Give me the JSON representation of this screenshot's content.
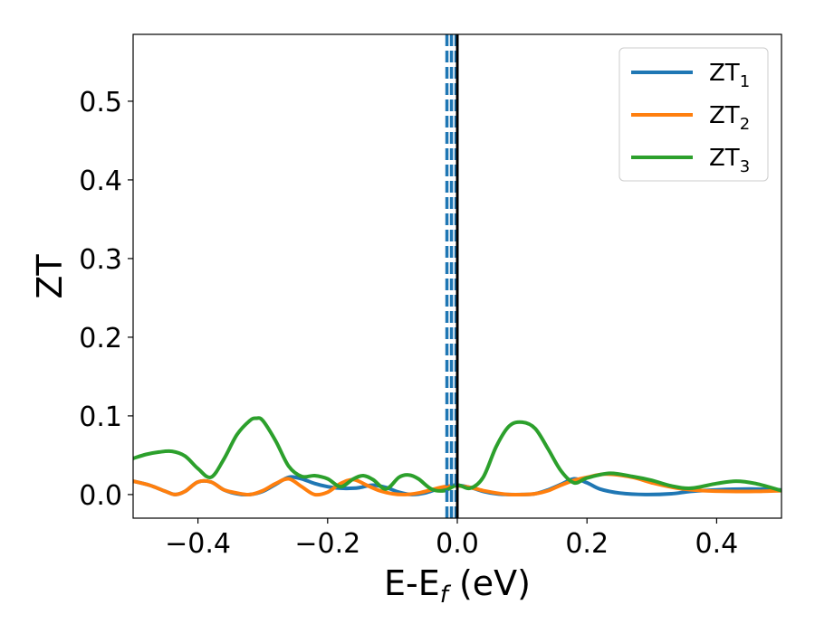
{
  "chart_data": {
    "type": "line",
    "xlabel": "E-E",
    "xlabel_sub": "f",
    "xlabel_unit": "(eV)",
    "ylabel": "ZT",
    "xlim": [
      -0.5,
      0.5
    ],
    "ylim": [
      -0.03,
      0.585
    ],
    "x_ticks": [
      -0.4,
      -0.2,
      0.0,
      0.2,
      0.4
    ],
    "x_tick_labels": [
      "−0.4",
      "−0.2",
      "0.0",
      "0.2",
      "0.4"
    ],
    "y_ticks": [
      0.0,
      0.1,
      0.2,
      0.3,
      0.4,
      0.5
    ],
    "y_tick_labels": [
      "0.0",
      "0.1",
      "0.2",
      "0.3",
      "0.4",
      "0.5"
    ],
    "legend_position": "top-right",
    "grid": false,
    "series": [
      {
        "name": "ZT",
        "name_sub": "1",
        "color": "#1f77b4",
        "x": [
          -0.5,
          -0.475,
          -0.45,
          -0.435,
          -0.42,
          -0.4,
          -0.38,
          -0.36,
          -0.34,
          -0.32,
          -0.3,
          -0.28,
          -0.26,
          -0.24,
          -0.22,
          -0.2,
          -0.18,
          -0.16,
          -0.15,
          -0.13,
          -0.11,
          -0.09,
          -0.07,
          -0.05,
          -0.03,
          -0.01,
          0.0,
          0.02,
          0.04,
          0.06,
          0.08,
          0.1,
          0.12,
          0.14,
          0.16,
          0.18,
          0.2,
          0.22,
          0.25,
          0.29,
          0.33,
          0.36,
          0.4,
          0.45,
          0.5
        ],
        "y": [
          0.017,
          0.012,
          0.004,
          0.0,
          0.004,
          0.016,
          0.016,
          0.006,
          0.001,
          0.0,
          0.004,
          0.013,
          0.022,
          0.02,
          0.014,
          0.01,
          0.008,
          0.008,
          0.009,
          0.012,
          0.009,
          0.003,
          0.0,
          0.002,
          0.007,
          0.011,
          0.012,
          0.009,
          0.004,
          0.001,
          0.0,
          0.0,
          0.001,
          0.006,
          0.013,
          0.02,
          0.015,
          0.007,
          0.002,
          0.0,
          0.001,
          0.004,
          0.006,
          0.007,
          0.006
        ]
      },
      {
        "name": "ZT",
        "name_sub": "2",
        "color": "#ff7f0e",
        "x": [
          -0.5,
          -0.475,
          -0.45,
          -0.435,
          -0.42,
          -0.4,
          -0.38,
          -0.36,
          -0.34,
          -0.32,
          -0.3,
          -0.28,
          -0.26,
          -0.24,
          -0.22,
          -0.2,
          -0.18,
          -0.16,
          -0.14,
          -0.12,
          -0.1,
          -0.08,
          -0.06,
          -0.04,
          -0.02,
          0.0,
          0.02,
          0.04,
          0.06,
          0.08,
          0.1,
          0.12,
          0.14,
          0.16,
          0.18,
          0.2,
          0.23,
          0.27,
          0.3,
          0.34,
          0.38,
          0.42,
          0.46,
          0.5
        ],
        "y": [
          0.017,
          0.012,
          0.004,
          0.0,
          0.004,
          0.016,
          0.016,
          0.006,
          0.002,
          0.0,
          0.005,
          0.014,
          0.02,
          0.01,
          0.0,
          0.003,
          0.014,
          0.019,
          0.012,
          0.005,
          0.001,
          0.0,
          0.002,
          0.006,
          0.01,
          0.011,
          0.009,
          0.005,
          0.002,
          0.0,
          0.0,
          0.001,
          0.005,
          0.012,
          0.018,
          0.022,
          0.026,
          0.022,
          0.015,
          0.008,
          0.005,
          0.004,
          0.004,
          0.005
        ]
      },
      {
        "name": "ZT",
        "name_sub": "3",
        "color": "#2ca02c",
        "x": [
          -0.5,
          -0.48,
          -0.46,
          -0.44,
          -0.42,
          -0.4,
          -0.38,
          -0.36,
          -0.34,
          -0.32,
          -0.31,
          -0.3,
          -0.28,
          -0.26,
          -0.24,
          -0.22,
          -0.2,
          -0.18,
          -0.16,
          -0.145,
          -0.13,
          -0.11,
          -0.09,
          -0.075,
          -0.06,
          -0.04,
          -0.02,
          0.0,
          0.02,
          0.04,
          0.06,
          0.08,
          0.1,
          0.12,
          0.14,
          0.16,
          0.18,
          0.2,
          0.235,
          0.27,
          0.3,
          0.33,
          0.36,
          0.4,
          0.43,
          0.46,
          0.5
        ],
        "y": [
          0.046,
          0.051,
          0.054,
          0.055,
          0.049,
          0.033,
          0.022,
          0.045,
          0.076,
          0.094,
          0.097,
          0.094,
          0.068,
          0.036,
          0.023,
          0.024,
          0.02,
          0.01,
          0.02,
          0.024,
          0.019,
          0.007,
          0.022,
          0.025,
          0.02,
          0.007,
          0.005,
          0.012,
          0.008,
          0.022,
          0.061,
          0.087,
          0.092,
          0.084,
          0.058,
          0.03,
          0.015,
          0.021,
          0.027,
          0.023,
          0.018,
          0.011,
          0.008,
          0.014,
          0.017,
          0.014,
          0.005
        ]
      }
    ],
    "vlines": [
      {
        "x": -0.016,
        "color": "#1f77b4",
        "style": "dashed"
      },
      {
        "x": -0.009,
        "color": "#1f77b4",
        "style": "dashed"
      },
      {
        "x": -0.002,
        "color": "#1f77b4",
        "style": "dashed"
      },
      {
        "x": 0.0,
        "color": "#000000",
        "style": "solid"
      }
    ]
  }
}
